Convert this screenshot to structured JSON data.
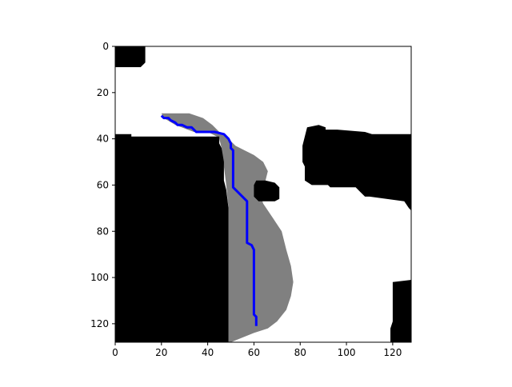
{
  "chart_data": {
    "type": "heatmap",
    "title": "",
    "xlabel": "",
    "ylabel": "",
    "grid_size": [
      128,
      128
    ],
    "xlim": [
      0,
      128
    ],
    "ylim": [
      128,
      0
    ],
    "x_ticks": [
      0,
      20,
      40,
      60,
      80,
      100,
      120
    ],
    "y_ticks": [
      0,
      20,
      40,
      60,
      80,
      100,
      120
    ],
    "x_tick_labels": [
      "0",
      "20",
      "40",
      "60",
      "80",
      "100",
      "120"
    ],
    "y_tick_labels": [
      "0",
      "20",
      "40",
      "60",
      "80",
      "100",
      "120"
    ],
    "colors": {
      "free": "#ffffff",
      "obstacle": "#000000",
      "explored": "#808080",
      "path": "#0000ff",
      "axes": "#000000"
    },
    "obstacles": [
      {
        "name": "obstacle-top-left",
        "points": [
          [
            0,
            0
          ],
          [
            13,
            0
          ],
          [
            13,
            7
          ],
          [
            11,
            9
          ],
          [
            0,
            9
          ]
        ]
      },
      {
        "name": "obstacle-left-block",
        "points": [
          [
            0,
            38
          ],
          [
            7,
            38
          ],
          [
            7,
            39
          ],
          [
            45,
            39
          ],
          [
            45,
            42
          ],
          [
            46,
            44
          ],
          [
            47,
            50
          ],
          [
            47,
            58
          ],
          [
            48,
            62
          ],
          [
            49,
            70
          ],
          [
            49,
            128
          ],
          [
            0,
            128
          ]
        ]
      },
      {
        "name": "obstacle-right-upper",
        "points": [
          [
            83,
            35
          ],
          [
            88,
            34
          ],
          [
            91,
            35
          ],
          [
            91,
            36
          ],
          [
            96,
            36
          ],
          [
            108,
            37
          ],
          [
            111,
            38
          ],
          [
            128,
            38
          ],
          [
            128,
            71
          ],
          [
            127,
            70
          ],
          [
            125,
            67
          ],
          [
            110,
            65
          ],
          [
            108,
            65
          ],
          [
            106,
            63
          ],
          [
            104,
            61
          ],
          [
            93,
            61
          ],
          [
            92,
            60
          ],
          [
            85,
            60
          ],
          [
            82,
            58
          ],
          [
            82,
            52
          ],
          [
            81,
            50
          ],
          [
            81,
            43
          ]
        ]
      },
      {
        "name": "obstacle-small-square",
        "points": [
          [
            61,
            58
          ],
          [
            65,
            58
          ],
          [
            69,
            59
          ],
          [
            71,
            61
          ],
          [
            71,
            66
          ],
          [
            69,
            67
          ],
          [
            62,
            67
          ],
          [
            60,
            65
          ],
          [
            60,
            60
          ]
        ]
      },
      {
        "name": "obstacle-bottom-right",
        "points": [
          [
            120,
            102
          ],
          [
            128,
            101
          ],
          [
            128,
            128
          ],
          [
            119,
            128
          ],
          [
            119,
            122
          ],
          [
            120,
            119
          ]
        ]
      }
    ],
    "explored_region": [
      [
        20,
        29
      ],
      [
        32,
        29
      ],
      [
        38,
        31
      ],
      [
        42,
        34
      ],
      [
        45,
        37
      ],
      [
        48,
        39
      ],
      [
        50,
        41
      ],
      [
        52,
        43
      ],
      [
        56,
        45
      ],
      [
        60,
        47
      ],
      [
        64,
        50
      ],
      [
        66,
        54
      ],
      [
        65,
        58
      ],
      [
        62,
        62
      ],
      [
        64,
        68
      ],
      [
        68,
        74
      ],
      [
        72,
        80
      ],
      [
        74,
        88
      ],
      [
        76,
        95
      ],
      [
        77,
        102
      ],
      [
        76,
        108
      ],
      [
        74,
        114
      ],
      [
        70,
        119
      ],
      [
        66,
        122
      ],
      [
        60,
        124
      ],
      [
        50,
        128
      ],
      [
        49,
        128
      ],
      [
        49,
        104
      ],
      [
        49,
        80
      ],
      [
        49,
        70
      ],
      [
        48,
        60
      ],
      [
        47,
        52
      ],
      [
        46,
        44
      ],
      [
        45,
        40
      ],
      [
        44,
        39
      ],
      [
        40,
        37
      ],
      [
        34,
        37
      ],
      [
        26,
        34
      ],
      [
        21,
        31
      ]
    ],
    "path": [
      [
        20,
        30
      ],
      [
        21,
        31
      ],
      [
        23,
        31
      ],
      [
        24,
        32
      ],
      [
        26,
        33
      ],
      [
        27,
        34
      ],
      [
        29,
        34
      ],
      [
        31,
        35
      ],
      [
        33,
        35
      ],
      [
        34,
        36
      ],
      [
        35,
        37
      ],
      [
        43,
        37
      ],
      [
        47,
        38
      ],
      [
        49,
        40
      ],
      [
        50,
        42
      ],
      [
        50,
        44
      ],
      [
        51,
        45
      ],
      [
        51,
        61
      ],
      [
        52,
        62
      ],
      [
        57,
        67
      ],
      [
        57,
        85
      ],
      [
        59,
        86
      ],
      [
        60,
        88
      ],
      [
        60,
        116
      ],
      [
        61,
        117
      ],
      [
        61,
        121
      ]
    ]
  }
}
